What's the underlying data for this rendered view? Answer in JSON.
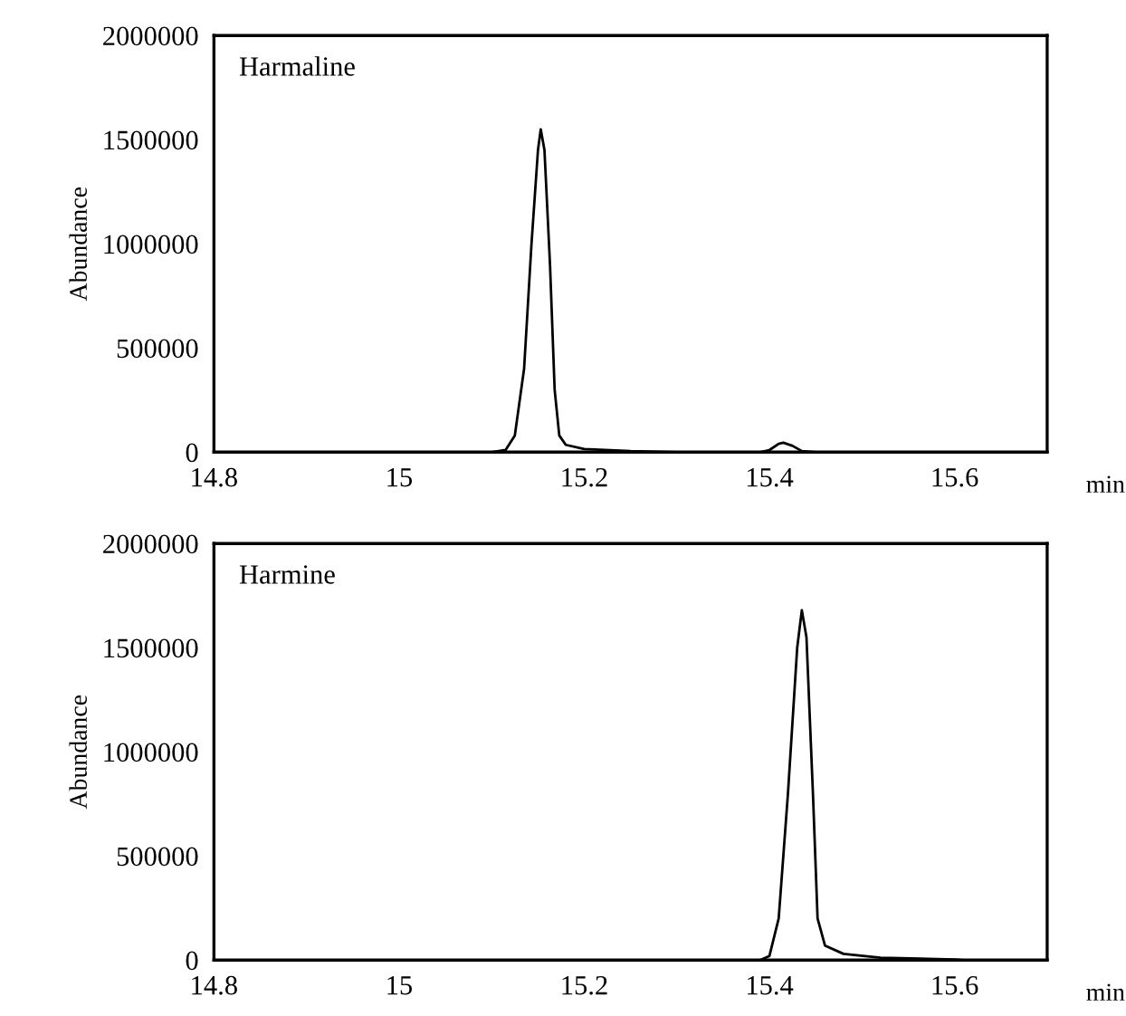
{
  "chart_data": [
    {
      "type": "line",
      "title": "Harmaline",
      "xlabel": "min",
      "ylabel": "Abundance",
      "xlim": [
        14.8,
        15.7
      ],
      "ylim": [
        0,
        2000000
      ],
      "xticks": [
        14.8,
        15,
        15.2,
        15.4,
        15.6
      ],
      "yticks": [
        0,
        500000,
        1000000,
        1500000,
        2000000
      ],
      "grid": false,
      "legend": false,
      "series": [
        {
          "color": "#000000",
          "x": [
            14.8,
            15.1,
            15.115,
            15.125,
            15.135,
            15.143,
            15.15,
            15.153,
            15.157,
            15.163,
            15.168,
            15.173,
            15.18,
            15.2,
            15.25,
            15.3,
            15.39,
            15.4,
            15.41,
            15.415,
            15.425,
            15.435,
            15.45,
            15.7
          ],
          "values": [
            0,
            0,
            10000,
            80000,
            400000,
            1000000,
            1450000,
            1550000,
            1450000,
            900000,
            300000,
            80000,
            35000,
            15000,
            5000,
            0,
            0,
            10000,
            40000,
            45000,
            30000,
            5000,
            0,
            0
          ]
        }
      ]
    },
    {
      "type": "line",
      "title": "Harmine",
      "xlabel": "min",
      "ylabel": "Abundance",
      "xlim": [
        14.8,
        15.7
      ],
      "ylim": [
        0,
        2000000
      ],
      "xticks": [
        14.8,
        15,
        15.2,
        15.4,
        15.6
      ],
      "yticks": [
        0,
        500000,
        1000000,
        1500000,
        2000000
      ],
      "grid": false,
      "legend": false,
      "series": [
        {
          "color": "#000000",
          "x": [
            14.8,
            15.39,
            15.4,
            15.41,
            15.42,
            15.43,
            15.435,
            15.44,
            15.447,
            15.452,
            15.46,
            15.48,
            15.52,
            15.6,
            15.61,
            15.7
          ],
          "values": [
            0,
            0,
            20000,
            200000,
            800000,
            1500000,
            1680000,
            1550000,
            800000,
            200000,
            70000,
            30000,
            12000,
            3000,
            0,
            0
          ]
        }
      ]
    }
  ]
}
